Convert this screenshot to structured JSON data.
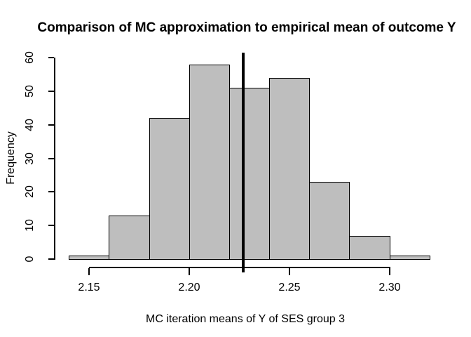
{
  "chart_data": {
    "type": "bar",
    "subtype": "histogram",
    "title": "Comparison of MC approximation to empirical mean of outcome Y",
    "xlabel": "MC iteration means of Y of SES group 3",
    "ylabel": "Frequency",
    "bin_edges": [
      2.14,
      2.16,
      2.18,
      2.2,
      2.22,
      2.24,
      2.26,
      2.28,
      2.3,
      2.32
    ],
    "counts": [
      1,
      13,
      42,
      58,
      51,
      54,
      23,
      7,
      1
    ],
    "x_tick_values": [
      2.15,
      2.2,
      2.25,
      2.3
    ],
    "x_tick_labels": [
      "2.15",
      "2.20",
      "2.25",
      "2.30"
    ],
    "y_tick_values": [
      0,
      10,
      20,
      30,
      40,
      50,
      60
    ],
    "y_tick_labels": [
      "0",
      "10",
      "20",
      "30",
      "40",
      "50",
      "60"
    ],
    "xlim": [
      2.1328,
      2.3272
    ],
    "ylim": [
      0,
      60
    ],
    "vline_x": 2.227,
    "grid": false,
    "legend": null,
    "bar_fill": "#BEBEBE",
    "bar_border": "#000000",
    "vline_color": "#000000",
    "axis_color": "#000000",
    "text_color": "#000000",
    "background": "#FFFFFF"
  }
}
